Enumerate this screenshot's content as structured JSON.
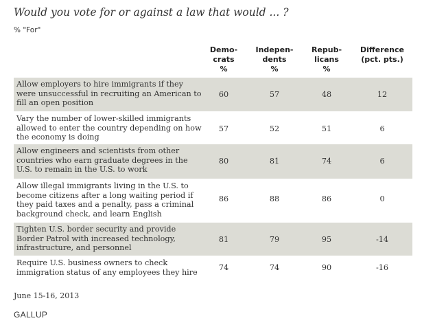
{
  "title": "Would you vote for or against a law that would ... ?",
  "subtitle": "% \"For\"",
  "columns": [
    {
      "lines": [
        "Demo-",
        "crats",
        "%"
      ]
    },
    {
      "lines": [
        "Indepen-",
        "dents",
        "%"
      ]
    },
    {
      "lines": [
        "Repub-",
        "licans",
        "%"
      ]
    },
    {
      "lines": [
        "Difference",
        "(pct. pts.)"
      ]
    }
  ],
  "chart_data": {
    "type": "table",
    "columns": [
      "Democrats %",
      "Independents %",
      "Republicans %",
      "Difference (pct. pts.)"
    ],
    "rows": [
      {
        "label": "Allow employers to hire immigrants if they were unsuccessful in recruiting an American to fill an open position",
        "values": [
          "60",
          "57",
          "48",
          "12"
        ]
      },
      {
        "label": "Vary the number of lower-skilled immigrants allowed to enter the country depending on how the economy is doing",
        "values": [
          "57",
          "52",
          "51",
          "6"
        ]
      },
      {
        "label": "Allow engineers and scientists from other countries who earn graduate degrees in the U.S. to remain in the U.S. to work",
        "values": [
          "80",
          "81",
          "74",
          "6"
        ]
      },
      {
        "label": "Allow illegal immigrants living in the U.S. to become citizens after a long waiting period if they paid taxes and a penalty, pass a criminal background check, and learn English",
        "values": [
          "86",
          "88",
          "86",
          "0"
        ]
      },
      {
        "label": "Tighten U.S. border security and provide Border Patrol with increased technology, infrastructure, and personnel",
        "values": [
          "81",
          "79",
          "95",
          "-14"
        ]
      },
      {
        "label": "Require U.S. business owners to check immigration status of any employees they hire",
        "values": [
          "74",
          "74",
          "90",
          "-16"
        ]
      }
    ]
  },
  "footer": {
    "date": "June 15-16, 2013",
    "logo": "GALLUP"
  },
  "colors": {
    "shaded_row": "#dcdcd5",
    "text": "#333333"
  }
}
